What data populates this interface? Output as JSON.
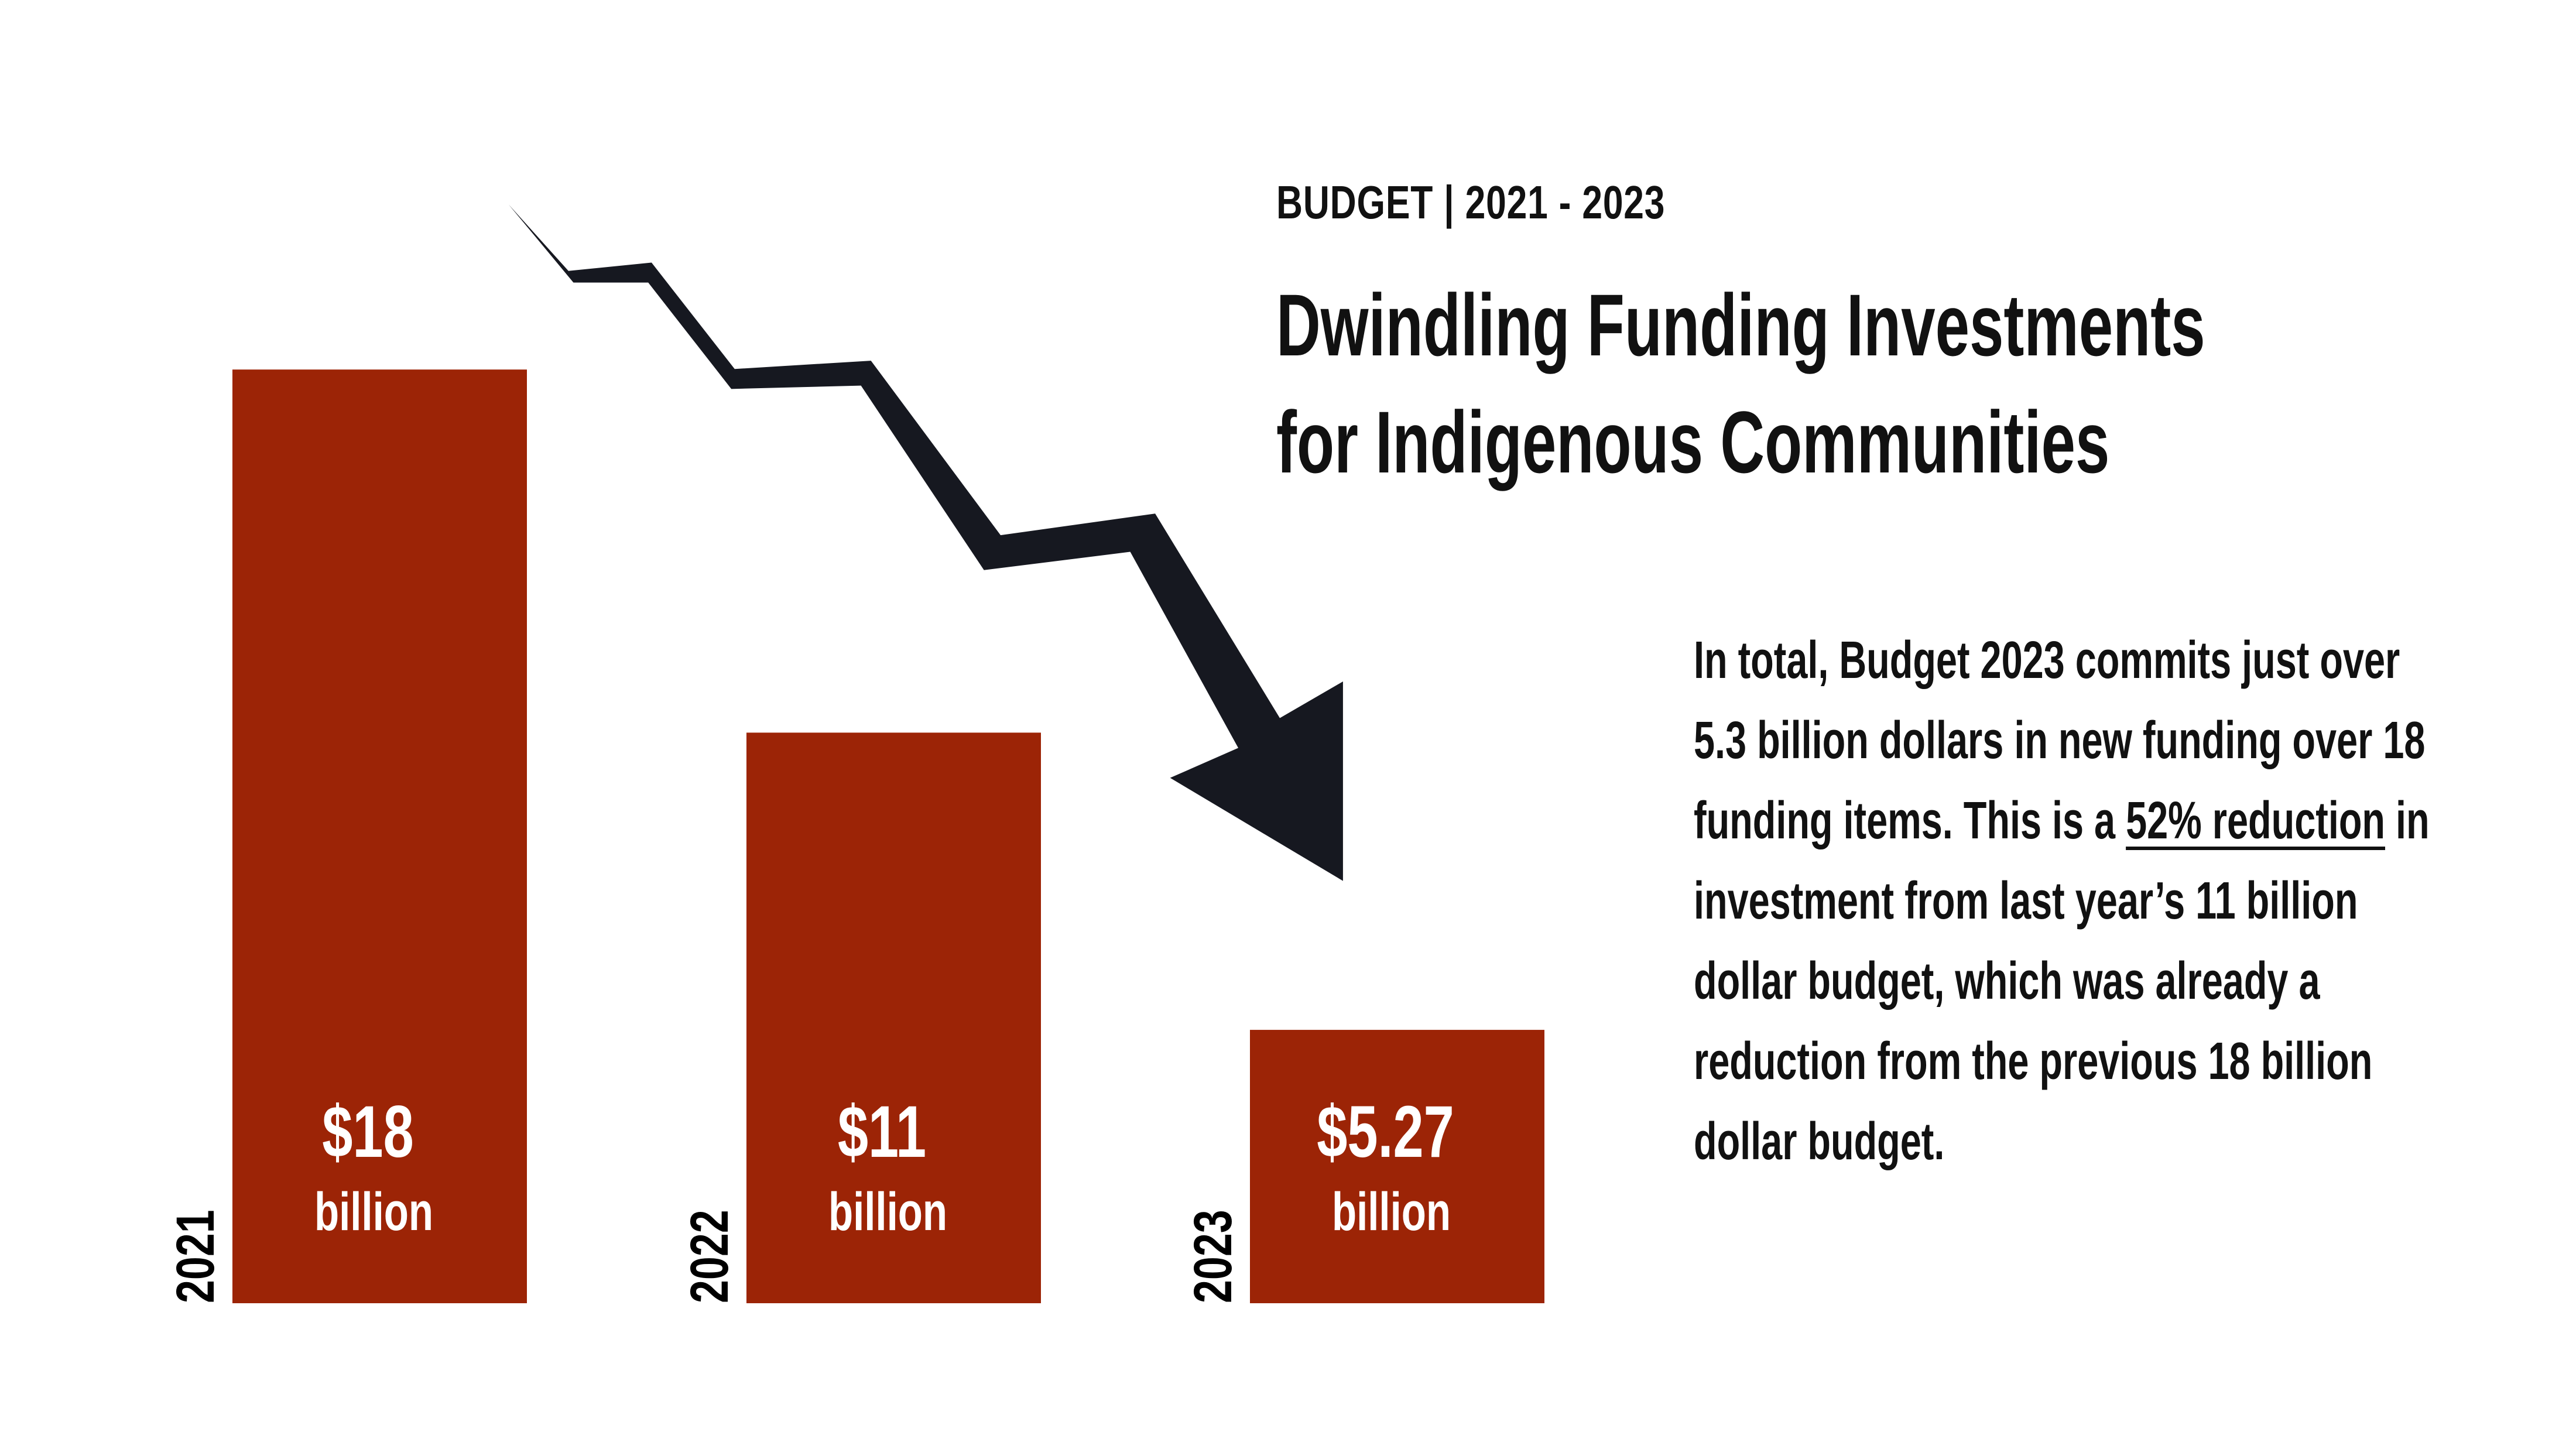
{
  "chart_data": {
    "type": "bar",
    "subtitle": "BUDGET | 2021 - 2023",
    "title": [
      "Dwindling Funding Investments",
      "for Indigenous Communities"
    ],
    "categories": [
      "2021",
      "2022",
      "2023"
    ],
    "values": [
      18,
      11,
      5.27
    ],
    "value_labels": [
      "$18",
      "$11",
      "$5.27"
    ],
    "value_unit": "billion",
    "color": "#9c2406",
    "body_text": {
      "before": "In total, Budget 2023 commits just over 5.3 billion dollars in new funding over 18 funding items. This is a ",
      "highlight": "52% reduction",
      "after": " in investment from last year’s 11 billion dollar budget, which was already a reduction from the previous 18 billion dollar budget."
    }
  }
}
